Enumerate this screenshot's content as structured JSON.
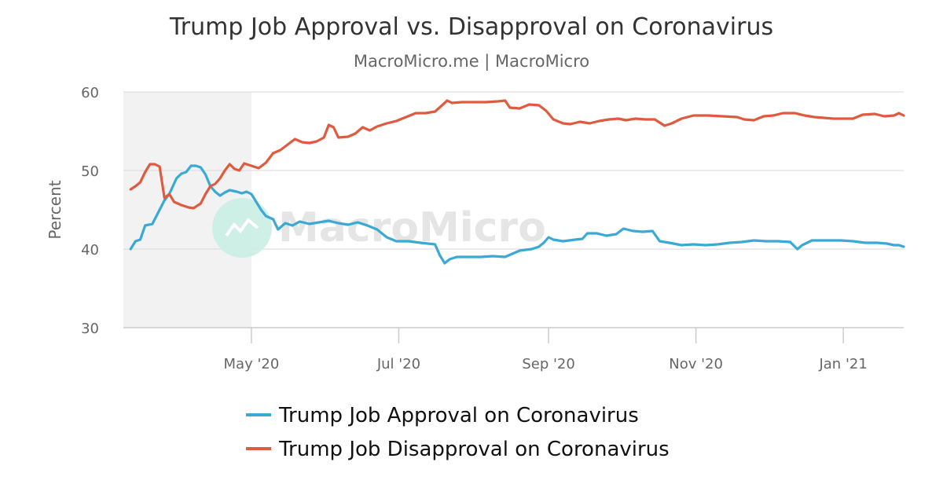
{
  "chart_data": {
    "type": "line",
    "title": "Trump Job Approval vs. Disapproval on Coronavirus",
    "subtitle": "MacroMicro.me | MacroMicro",
    "ylabel": "Percent",
    "xlabel": "",
    "ylim": [
      30,
      60
    ],
    "y_ticks": [
      "30",
      "40",
      "50",
      "60"
    ],
    "x_range": [
      "2020-03-09",
      "2021-01-26"
    ],
    "x_ticks": [
      {
        "label": "May '20",
        "date": "2020-05-01"
      },
      {
        "label": "Jul '20",
        "date": "2020-07-01"
      },
      {
        "label": "Sep '20",
        "date": "2020-09-01"
      },
      {
        "label": "Nov '20",
        "date": "2020-11-01"
      },
      {
        "label": "Jan '21",
        "date": "2021-01-01"
      }
    ],
    "shaded_range": [
      "2020-03-09",
      "2020-05-01"
    ],
    "grid": true,
    "legend_position": "bottom-center",
    "watermark": "MacroMicro",
    "series": [
      {
        "name": "Trump Job Approval on Coronavirus",
        "color": "#3aa9d6",
        "points": [
          [
            "2020-03-12",
            40.0
          ],
          [
            "2020-03-14",
            41.0
          ],
          [
            "2020-03-16",
            41.2
          ],
          [
            "2020-03-18",
            43.0
          ],
          [
            "2020-03-21",
            43.2
          ],
          [
            "2020-03-24",
            45.0
          ],
          [
            "2020-03-26",
            46.2
          ],
          [
            "2020-03-28",
            47.0
          ],
          [
            "2020-03-31",
            49.0
          ],
          [
            "2020-04-02",
            49.6
          ],
          [
            "2020-04-04",
            49.8
          ],
          [
            "2020-04-06",
            50.6
          ],
          [
            "2020-04-08",
            50.6
          ],
          [
            "2020-04-10",
            50.4
          ],
          [
            "2020-04-12",
            49.5
          ],
          [
            "2020-04-14",
            48.0
          ],
          [
            "2020-04-16",
            47.3
          ],
          [
            "2020-04-18",
            46.8
          ],
          [
            "2020-04-20",
            47.2
          ],
          [
            "2020-04-22",
            47.5
          ],
          [
            "2020-04-25",
            47.3
          ],
          [
            "2020-04-27",
            47.1
          ],
          [
            "2020-04-29",
            47.3
          ],
          [
            "2020-05-01",
            47.0
          ],
          [
            "2020-05-03",
            46.0
          ],
          [
            "2020-05-05",
            45.0
          ],
          [
            "2020-05-07",
            44.2
          ],
          [
            "2020-05-10",
            43.8
          ],
          [
            "2020-05-12",
            42.5
          ],
          [
            "2020-05-15",
            43.3
          ],
          [
            "2020-05-18",
            43.0
          ],
          [
            "2020-05-21",
            43.5
          ],
          [
            "2020-05-25",
            43.2
          ],
          [
            "2020-05-29",
            43.4
          ],
          [
            "2020-06-02",
            43.6
          ],
          [
            "2020-06-06",
            43.3
          ],
          [
            "2020-06-10",
            43.1
          ],
          [
            "2020-06-14",
            43.4
          ],
          [
            "2020-06-18",
            43.0
          ],
          [
            "2020-06-22",
            42.5
          ],
          [
            "2020-06-26",
            41.5
          ],
          [
            "2020-06-30",
            41.0
          ],
          [
            "2020-07-05",
            41.0
          ],
          [
            "2020-07-10",
            40.8
          ],
          [
            "2020-07-16",
            40.6
          ],
          [
            "2020-07-18",
            39.2
          ],
          [
            "2020-07-20",
            38.2
          ],
          [
            "2020-07-22",
            38.7
          ],
          [
            "2020-07-25",
            39.0
          ],
          [
            "2020-07-30",
            39.0
          ],
          [
            "2020-08-04",
            39.0
          ],
          [
            "2020-08-09",
            39.1
          ],
          [
            "2020-08-14",
            39.0
          ],
          [
            "2020-08-17",
            39.4
          ],
          [
            "2020-08-20",
            39.8
          ],
          [
            "2020-08-25",
            40.0
          ],
          [
            "2020-08-28",
            40.3
          ],
          [
            "2020-08-30",
            40.8
          ],
          [
            "2020-09-01",
            41.5
          ],
          [
            "2020-09-03",
            41.2
          ],
          [
            "2020-09-07",
            41.0
          ],
          [
            "2020-09-12",
            41.2
          ],
          [
            "2020-09-15",
            41.3
          ],
          [
            "2020-09-17",
            42.0
          ],
          [
            "2020-09-21",
            42.0
          ],
          [
            "2020-09-25",
            41.7
          ],
          [
            "2020-09-29",
            41.9
          ],
          [
            "2020-10-02",
            42.6
          ],
          [
            "2020-10-06",
            42.3
          ],
          [
            "2020-10-10",
            42.2
          ],
          [
            "2020-10-14",
            42.3
          ],
          [
            "2020-10-17",
            41.0
          ],
          [
            "2020-10-21",
            40.8
          ],
          [
            "2020-10-26",
            40.5
          ],
          [
            "2020-10-31",
            40.6
          ],
          [
            "2020-11-05",
            40.5
          ],
          [
            "2020-11-10",
            40.6
          ],
          [
            "2020-11-15",
            40.8
          ],
          [
            "2020-11-20",
            40.9
          ],
          [
            "2020-11-25",
            41.1
          ],
          [
            "2020-11-30",
            41.0
          ],
          [
            "2020-12-05",
            41.0
          ],
          [
            "2020-12-10",
            40.9
          ],
          [
            "2020-12-13",
            40.0
          ],
          [
            "2020-12-15",
            40.5
          ],
          [
            "2020-12-19",
            41.1
          ],
          [
            "2020-12-24",
            41.1
          ],
          [
            "2020-12-31",
            41.1
          ],
          [
            "2021-01-05",
            41.0
          ],
          [
            "2021-01-10",
            40.8
          ],
          [
            "2021-01-15",
            40.8
          ],
          [
            "2021-01-19",
            40.7
          ],
          [
            "2021-01-22",
            40.5
          ],
          [
            "2021-01-24",
            40.5
          ],
          [
            "2021-01-26",
            40.3
          ]
        ]
      },
      {
        "name": "Trump Job Disapproval on Coronavirus",
        "color": "#e05a3f",
        "points": [
          [
            "2020-03-12",
            47.6
          ],
          [
            "2020-03-14",
            48.0
          ],
          [
            "2020-03-16",
            48.5
          ],
          [
            "2020-03-18",
            49.8
          ],
          [
            "2020-03-20",
            50.8
          ],
          [
            "2020-03-22",
            50.8
          ],
          [
            "2020-03-24",
            50.5
          ],
          [
            "2020-03-26",
            46.5
          ],
          [
            "2020-03-28",
            47.0
          ],
          [
            "2020-03-30",
            46.0
          ],
          [
            "2020-04-02",
            45.6
          ],
          [
            "2020-04-05",
            45.3
          ],
          [
            "2020-04-07",
            45.2
          ],
          [
            "2020-04-10",
            45.8
          ],
          [
            "2020-04-12",
            47.0
          ],
          [
            "2020-04-14",
            48.0
          ],
          [
            "2020-04-16",
            48.3
          ],
          [
            "2020-04-18",
            49.0
          ],
          [
            "2020-04-20",
            50.0
          ],
          [
            "2020-04-22",
            50.8
          ],
          [
            "2020-04-24",
            50.2
          ],
          [
            "2020-04-26",
            50.0
          ],
          [
            "2020-04-28",
            50.9
          ],
          [
            "2020-05-01",
            50.6
          ],
          [
            "2020-05-04",
            50.3
          ],
          [
            "2020-05-07",
            51.0
          ],
          [
            "2020-05-10",
            52.2
          ],
          [
            "2020-05-13",
            52.6
          ],
          [
            "2020-05-16",
            53.3
          ],
          [
            "2020-05-19",
            54.0
          ],
          [
            "2020-05-22",
            53.6
          ],
          [
            "2020-05-25",
            53.5
          ],
          [
            "2020-05-28",
            53.7
          ],
          [
            "2020-05-31",
            54.2
          ],
          [
            "2020-06-02",
            55.8
          ],
          [
            "2020-06-04",
            55.5
          ],
          [
            "2020-06-06",
            54.2
          ],
          [
            "2020-06-10",
            54.3
          ],
          [
            "2020-06-13",
            54.7
          ],
          [
            "2020-06-16",
            55.5
          ],
          [
            "2020-06-19",
            55.1
          ],
          [
            "2020-06-22",
            55.6
          ],
          [
            "2020-06-26",
            56.0
          ],
          [
            "2020-06-30",
            56.3
          ],
          [
            "2020-07-04",
            56.8
          ],
          [
            "2020-07-08",
            57.3
          ],
          [
            "2020-07-12",
            57.3
          ],
          [
            "2020-07-16",
            57.5
          ],
          [
            "2020-07-20",
            58.6
          ],
          [
            "2020-07-21",
            58.9
          ],
          [
            "2020-07-23",
            58.6
          ],
          [
            "2020-07-27",
            58.7
          ],
          [
            "2020-08-01",
            58.7
          ],
          [
            "2020-08-06",
            58.7
          ],
          [
            "2020-08-11",
            58.8
          ],
          [
            "2020-08-14",
            58.9
          ],
          [
            "2020-08-16",
            58.0
          ],
          [
            "2020-08-20",
            57.9
          ],
          [
            "2020-08-24",
            58.4
          ],
          [
            "2020-08-28",
            58.3
          ],
          [
            "2020-08-31",
            57.6
          ],
          [
            "2020-09-03",
            56.5
          ],
          [
            "2020-09-07",
            56.0
          ],
          [
            "2020-09-10",
            55.9
          ],
          [
            "2020-09-14",
            56.2
          ],
          [
            "2020-09-18",
            56.0
          ],
          [
            "2020-09-22",
            56.3
          ],
          [
            "2020-09-26",
            56.5
          ],
          [
            "2020-09-30",
            56.6
          ],
          [
            "2020-10-03",
            56.4
          ],
          [
            "2020-10-07",
            56.6
          ],
          [
            "2020-10-11",
            56.5
          ],
          [
            "2020-10-15",
            56.5
          ],
          [
            "2020-10-19",
            55.7
          ],
          [
            "2020-10-22",
            56.0
          ],
          [
            "2020-10-26",
            56.6
          ],
          [
            "2020-10-31",
            57.0
          ],
          [
            "2020-11-06",
            57.0
          ],
          [
            "2020-11-12",
            56.9
          ],
          [
            "2020-11-18",
            56.8
          ],
          [
            "2020-11-21",
            56.5
          ],
          [
            "2020-11-25",
            56.4
          ],
          [
            "2020-11-29",
            56.9
          ],
          [
            "2020-12-03",
            57.0
          ],
          [
            "2020-12-07",
            57.3
          ],
          [
            "2020-12-12",
            57.3
          ],
          [
            "2020-12-16",
            57.0
          ],
          [
            "2020-12-20",
            56.8
          ],
          [
            "2020-12-24",
            56.7
          ],
          [
            "2020-12-28",
            56.6
          ],
          [
            "2021-01-01",
            56.6
          ],
          [
            "2021-01-05",
            56.6
          ],
          [
            "2021-01-09",
            57.1
          ],
          [
            "2021-01-14",
            57.2
          ],
          [
            "2021-01-18",
            56.9
          ],
          [
            "2021-01-22",
            57.0
          ],
          [
            "2021-01-24",
            57.3
          ],
          [
            "2021-01-26",
            57.0
          ]
        ]
      }
    ]
  }
}
